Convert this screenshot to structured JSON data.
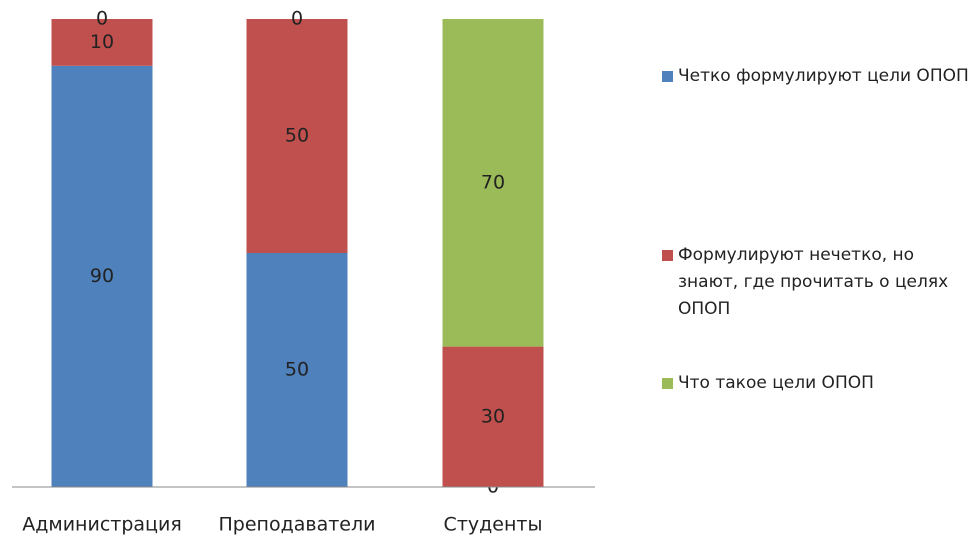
{
  "chart_data": {
    "type": "stacked_bar",
    "categories": [
      "Администрация",
      "Преподаватели",
      "Студенты"
    ],
    "series": [
      {
        "name": "Четко формулируют цели ОПОП",
        "color": "#4f81bd",
        "values": [
          90,
          50,
          0
        ]
      },
      {
        "name": "Формулируют нечетко, но знают, где прочитать о целях ОПОП",
        "color": "#c0504d",
        "values": [
          10,
          50,
          30
        ]
      },
      {
        "name": "Что такое цели ОПОП",
        "color": "#9bbb59",
        "values": [
          0,
          0,
          70
        ]
      }
    ],
    "legend": "right"
  }
}
